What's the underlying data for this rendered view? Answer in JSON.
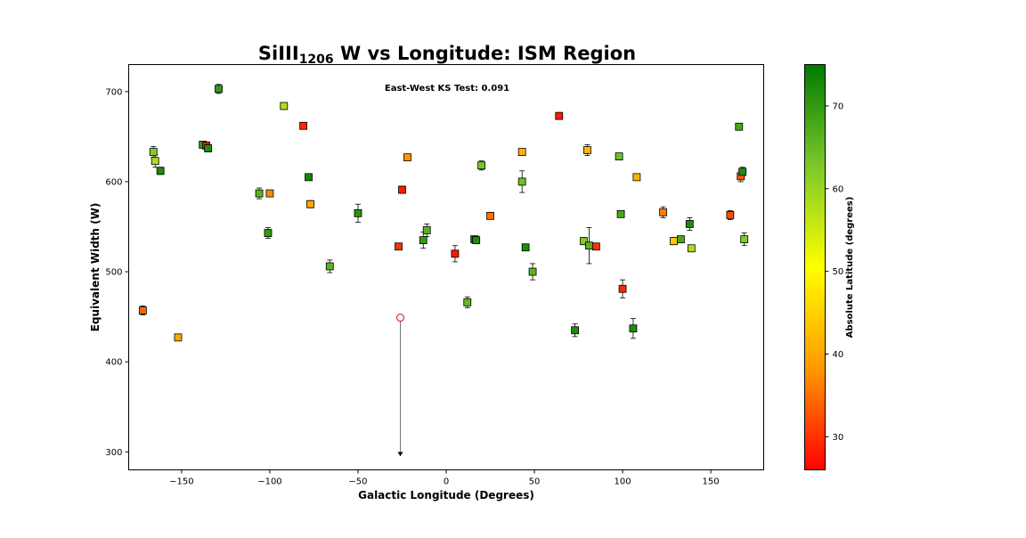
{
  "chart_data": {
    "type": "scatter",
    "title": {
      "prefix": "SiIII",
      "subscript": "1206",
      "suffix": " W vs Longitude: ISM Region"
    },
    "annotation": "East-West KS Test: 0.091",
    "xlabel": "Galactic Longitude (Degrees)",
    "ylabel": "Equivalent Width (W)",
    "colorbar_label": "Absolute Latitude (degrees)",
    "xlim": [
      -180,
      180
    ],
    "ylim": [
      280,
      730
    ],
    "xticks": [
      -150,
      -100,
      -50,
      0,
      50,
      100,
      150
    ],
    "xtick_labels": [
      "−150",
      "−100",
      "−50",
      "0",
      "50",
      "100",
      "150"
    ],
    "yticks": [
      300,
      400,
      500,
      600,
      700
    ],
    "ytick_labels": [
      "300",
      "400",
      "500",
      "600",
      "700"
    ],
    "clim": [
      26,
      75
    ],
    "cticks": [
      30,
      40,
      50,
      60,
      70
    ],
    "ctick_labels": [
      "30",
      "40",
      "50",
      "60",
      "70"
    ],
    "colormap": [
      "#ff0000",
      "#ff9900",
      "#ffff00",
      "#7cc82a",
      "#007a00"
    ],
    "points": [
      {
        "x": -172,
        "y": 457,
        "err": 5,
        "lat": 34
      },
      {
        "x": -166,
        "y": 633,
        "err": 6,
        "lat": 62
      },
      {
        "x": -165,
        "y": 623,
        "err": 7,
        "lat": 58
      },
      {
        "x": -162,
        "y": 612,
        "err": 4,
        "lat": 72
      },
      {
        "x": -152,
        "y": 427,
        "err": 3,
        "lat": 40
      },
      {
        "x": -138,
        "y": 641,
        "err": 3,
        "lat": 70
      },
      {
        "x": -136,
        "y": 640,
        "err": 4,
        "lat": 28
      },
      {
        "x": -135,
        "y": 637,
        "err": 4,
        "lat": 72
      },
      {
        "x": -129,
        "y": 703,
        "err": 5,
        "lat": 70
      },
      {
        "x": -106,
        "y": 587,
        "err": 6,
        "lat": 66
      },
      {
        "x": -101,
        "y": 543,
        "err": 6,
        "lat": 70
      },
      {
        "x": -100,
        "y": 587,
        "err": 3,
        "lat": 37
      },
      {
        "x": -92,
        "y": 684,
        "err": 3,
        "lat": 58
      },
      {
        "x": -81,
        "y": 662,
        "err": 3,
        "lat": 29
      },
      {
        "x": -78,
        "y": 605,
        "err": 3,
        "lat": 73
      },
      {
        "x": -77,
        "y": 575,
        "err": 4,
        "lat": 40
      },
      {
        "x": -66,
        "y": 506,
        "err": 7,
        "lat": 66
      },
      {
        "x": -50,
        "y": 565,
        "err": 10,
        "lat": 71
      },
      {
        "x": -27,
        "y": 528,
        "err": 3,
        "lat": 30
      },
      {
        "x": -25,
        "y": 591,
        "err": 4,
        "lat": 28
      },
      {
        "x": -22,
        "y": 627,
        "err": 3,
        "lat": 38
      },
      {
        "x": -13,
        "y": 535,
        "err": 9,
        "lat": 70
      },
      {
        "x": -11,
        "y": 546,
        "err": 7,
        "lat": 66
      },
      {
        "x": 5,
        "y": 520,
        "err": 9,
        "lat": 28
      },
      {
        "x": 12,
        "y": 466,
        "err": 6,
        "lat": 65
      },
      {
        "x": 16,
        "y": 536,
        "err": 3,
        "lat": 74
      },
      {
        "x": 17,
        "y": 535,
        "err": 3,
        "lat": 72
      },
      {
        "x": 20,
        "y": 618,
        "err": 5,
        "lat": 63
      },
      {
        "x": 25,
        "y": 562,
        "err": 3,
        "lat": 35
      },
      {
        "x": 43,
        "y": 600,
        "err": 12,
        "lat": 64
      },
      {
        "x": 43,
        "y": 633,
        "err": 3,
        "lat": 41
      },
      {
        "x": 45,
        "y": 527,
        "err": 3,
        "lat": 72
      },
      {
        "x": 49,
        "y": 500,
        "err": 9,
        "lat": 66
      },
      {
        "x": 64,
        "y": 673,
        "err": 3,
        "lat": 28
      },
      {
        "x": 73,
        "y": 435,
        "err": 7,
        "lat": 72
      },
      {
        "x": 78,
        "y": 534,
        "err": 4,
        "lat": 62
      },
      {
        "x": 80,
        "y": 635,
        "err": 6,
        "lat": 42
      },
      {
        "x": 81,
        "y": 529,
        "err": 20,
        "lat": 66
      },
      {
        "x": 85,
        "y": 528,
        "err": 3,
        "lat": 30
      },
      {
        "x": 98,
        "y": 628,
        "err": 3,
        "lat": 64
      },
      {
        "x": 99,
        "y": 564,
        "err": 3,
        "lat": 68
      },
      {
        "x": 100,
        "y": 481,
        "err": 10,
        "lat": 29
      },
      {
        "x": 106,
        "y": 437,
        "err": 11,
        "lat": 72
      },
      {
        "x": 108,
        "y": 605,
        "err": 3,
        "lat": 42
      },
      {
        "x": 123,
        "y": 566,
        "err": 6,
        "lat": 36
      },
      {
        "x": 129,
        "y": 534,
        "err": 4,
        "lat": 44
      },
      {
        "x": 133,
        "y": 536,
        "err": 3,
        "lat": 68
      },
      {
        "x": 138,
        "y": 553,
        "err": 7,
        "lat": 72
      },
      {
        "x": 139,
        "y": 526,
        "err": 3,
        "lat": 58
      },
      {
        "x": 161,
        "y": 563,
        "err": 5,
        "lat": 32
      },
      {
        "x": 166,
        "y": 661,
        "err": 3,
        "lat": 68
      },
      {
        "x": 167,
        "y": 606,
        "err": 6,
        "lat": 33
      },
      {
        "x": 168,
        "y": 611,
        "err": 5,
        "lat": 72
      },
      {
        "x": 169,
        "y": 536,
        "err": 7,
        "lat": 62
      }
    ],
    "upper_limits": [
      {
        "x": -26,
        "y": 449,
        "limit_to": 296
      }
    ]
  }
}
